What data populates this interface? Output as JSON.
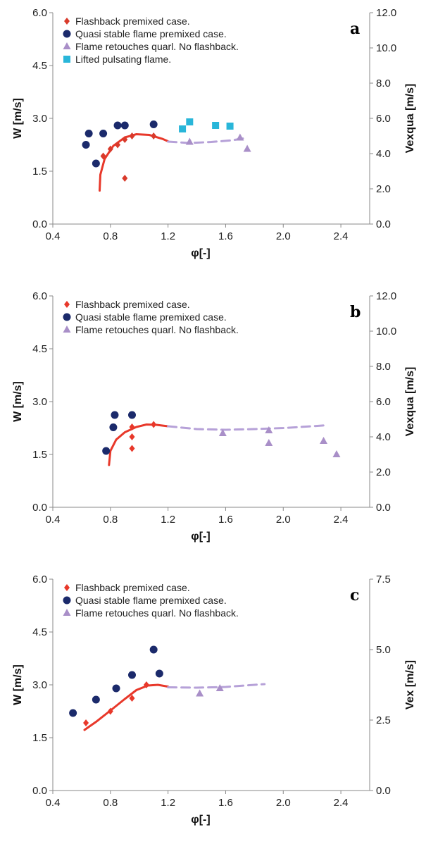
{
  "chart_data": [
    {
      "type": "scatter",
      "panel_label": "a",
      "xlabel": "φ[-]",
      "ylabel": "W [m/s]",
      "y2label": "Vexqua [m/s]",
      "xlim": [
        0.4,
        2.6
      ],
      "ylim": [
        0.0,
        6.0
      ],
      "y2lim": [
        0.0,
        12.0
      ],
      "x_ticks": [
        "0.4",
        "0.8",
        "1.2",
        "1.6",
        "2.0",
        "2.4"
      ],
      "y_ticks": [
        "0.0",
        "1.5",
        "3.0",
        "4.5",
        "6.0"
      ],
      "y2_ticks": [
        "0.0",
        "2.0",
        "4.0",
        "6.0",
        "8.0",
        "10.0",
        "12.0"
      ],
      "legend_position": "top-left",
      "series": [
        {
          "name": "Flashback premixed case.",
          "marker": "diamond",
          "color": "#d93a2b",
          "points": [
            [
              0.75,
              1.93
            ],
            [
              0.8,
              2.13
            ],
            [
              0.85,
              2.25
            ],
            [
              0.9,
              2.4
            ],
            [
              0.95,
              2.5
            ],
            [
              1.1,
              2.5
            ],
            [
              0.9,
              1.3
            ]
          ]
        },
        {
          "name": "Quasi stable  flame premixed case.",
          "marker": "circle",
          "color": "#1b2a6b",
          "points": [
            [
              0.63,
              2.25
            ],
            [
              0.65,
              2.57
            ],
            [
              0.7,
              1.72
            ],
            [
              0.75,
              2.57
            ],
            [
              0.85,
              2.8
            ],
            [
              0.9,
              2.8
            ],
            [
              1.1,
              2.83
            ]
          ]
        },
        {
          "name": "Flame retouches quarl. No flashback.",
          "marker": "triangle",
          "color": "#a98fc8",
          "points": [
            [
              1.35,
              2.33
            ],
            [
              1.7,
              2.45
            ],
            [
              1.75,
              2.13
            ]
          ]
        },
        {
          "name": "Lifted pulsating flame.",
          "marker": "square",
          "color": "#29b6d9",
          "points": [
            [
              1.3,
              2.7
            ],
            [
              1.35,
              2.9
            ],
            [
              1.53,
              2.8
            ],
            [
              1.63,
              2.78
            ]
          ]
        }
      ],
      "fits": [
        {
          "style": "solid",
          "color": "#e8382a",
          "points": [
            [
              0.725,
              0.95
            ],
            [
              0.73,
              1.4
            ],
            [
              0.76,
              1.85
            ],
            [
              0.82,
              2.22
            ],
            [
              0.9,
              2.46
            ],
            [
              0.98,
              2.55
            ],
            [
              1.07,
              2.53
            ],
            [
              1.16,
              2.42
            ],
            [
              1.2,
              2.35
            ]
          ]
        },
        {
          "style": "dashed",
          "color": "#b6a1d8",
          "points": [
            [
              1.2,
              2.34
            ],
            [
              1.35,
              2.3
            ],
            [
              1.5,
              2.33
            ],
            [
              1.65,
              2.38
            ],
            [
              1.72,
              2.43
            ]
          ]
        }
      ]
    },
    {
      "type": "scatter",
      "panel_label": "b",
      "xlabel": "φ[-]",
      "ylabel": "W [m/s]",
      "y2label": "Vexqua [m/s]",
      "xlim": [
        0.4,
        2.6
      ],
      "ylim": [
        0.0,
        6.0
      ],
      "y2lim": [
        0.0,
        12.0
      ],
      "x_ticks": [
        "0.4",
        "0.8",
        "1.2",
        "1.6",
        "2.0",
        "2.4"
      ],
      "y_ticks": [
        "0.0",
        "1.5",
        "3.0",
        "4.5",
        "6.0"
      ],
      "y2_ticks": [
        "0.0",
        "2.0",
        "4.0",
        "6.0",
        "8.0",
        "10.0",
        "12.0"
      ],
      "legend_position": "top-left",
      "series": [
        {
          "name": "Flashback premixed case.",
          "marker": "diamond",
          "color": "#e8382a",
          "points": [
            [
              0.95,
              1.67
            ],
            [
              0.95,
              2.0
            ],
            [
              0.95,
              2.28
            ],
            [
              1.1,
              2.35
            ]
          ]
        },
        {
          "name": "Quasi stable  flame premixed case.",
          "marker": "circle",
          "color": "#1b2a6b",
          "points": [
            [
              0.77,
              1.6
            ],
            [
              0.82,
              2.27
            ],
            [
              0.83,
              2.62
            ],
            [
              0.95,
              2.62
            ]
          ]
        },
        {
          "name": "Flame retouches quarl. No flashback.",
          "marker": "triangle",
          "color": "#a98fc8",
          "points": [
            [
              1.58,
              2.1
            ],
            [
              1.9,
              1.82
            ],
            [
              1.9,
              2.18
            ],
            [
              2.28,
              1.88
            ],
            [
              2.37,
              1.5
            ]
          ]
        }
      ],
      "fits": [
        {
          "style": "solid",
          "color": "#e8382a",
          "points": [
            [
              0.79,
              1.2
            ],
            [
              0.8,
              1.6
            ],
            [
              0.84,
              1.92
            ],
            [
              0.9,
              2.13
            ],
            [
              0.98,
              2.28
            ],
            [
              1.05,
              2.35
            ],
            [
              1.12,
              2.34
            ],
            [
              1.2,
              2.3
            ]
          ]
        },
        {
          "style": "dashed",
          "color": "#b6a1d8",
          "points": [
            [
              1.2,
              2.3
            ],
            [
              1.4,
              2.22
            ],
            [
              1.6,
              2.2
            ],
            [
              1.8,
              2.22
            ],
            [
              2.0,
              2.25
            ],
            [
              2.2,
              2.3
            ],
            [
              2.3,
              2.33
            ]
          ]
        }
      ]
    },
    {
      "type": "scatter",
      "panel_label": "c",
      "xlabel": "φ[-]",
      "ylabel": "W [m/s]",
      "y2label": "Vex [m/s]",
      "xlim": [
        0.4,
        2.6
      ],
      "ylim": [
        0.0,
        6.0
      ],
      "y2lim": [
        0.0,
        7.5
      ],
      "x_ticks": [
        "0.4",
        "0.8",
        "1.2",
        "1.6",
        "2.0",
        "2.4"
      ],
      "y_ticks": [
        "0.0",
        "1.5",
        "3.0",
        "4.5",
        "6.0"
      ],
      "y2_ticks": [
        "0.0",
        "2.5",
        "5.0",
        "7.5"
      ],
      "legend_position": "top-left",
      "series": [
        {
          "name": "Flashback premixed case.",
          "marker": "diamond",
          "color": "#e8382a",
          "points": [
            [
              0.63,
              1.92
            ],
            [
              0.8,
              2.25
            ],
            [
              0.95,
              2.62
            ],
            [
              1.05,
              3.0
            ]
          ]
        },
        {
          "name": "Quasi stable  flame premixed case.",
          "marker": "circle",
          "color": "#1b2a6b",
          "points": [
            [
              0.54,
              2.2
            ],
            [
              0.7,
              2.58
            ],
            [
              0.84,
              2.9
            ],
            [
              0.95,
              3.28
            ],
            [
              1.1,
              4.0
            ],
            [
              1.14,
              3.32
            ]
          ]
        },
        {
          "name": "Flame retouches quarl. No flashback.",
          "marker": "triangle",
          "color": "#a98fc8",
          "points": [
            [
              1.42,
              2.75
            ],
            [
              1.56,
              2.9
            ]
          ]
        }
      ],
      "fits": [
        {
          "style": "solid",
          "color": "#e8382a",
          "points": [
            [
              0.62,
              1.72
            ],
            [
              0.7,
              1.95
            ],
            [
              0.8,
              2.27
            ],
            [
              0.9,
              2.6
            ],
            [
              0.98,
              2.85
            ],
            [
              1.06,
              2.98
            ],
            [
              1.13,
              3.0
            ],
            [
              1.2,
              2.95
            ]
          ]
        },
        {
          "style": "dashed",
          "color": "#b6a1d8",
          "points": [
            [
              1.2,
              2.93
            ],
            [
              1.4,
              2.92
            ],
            [
              1.6,
              2.94
            ],
            [
              1.8,
              3.0
            ],
            [
              1.87,
              3.02
            ]
          ]
        }
      ]
    }
  ]
}
